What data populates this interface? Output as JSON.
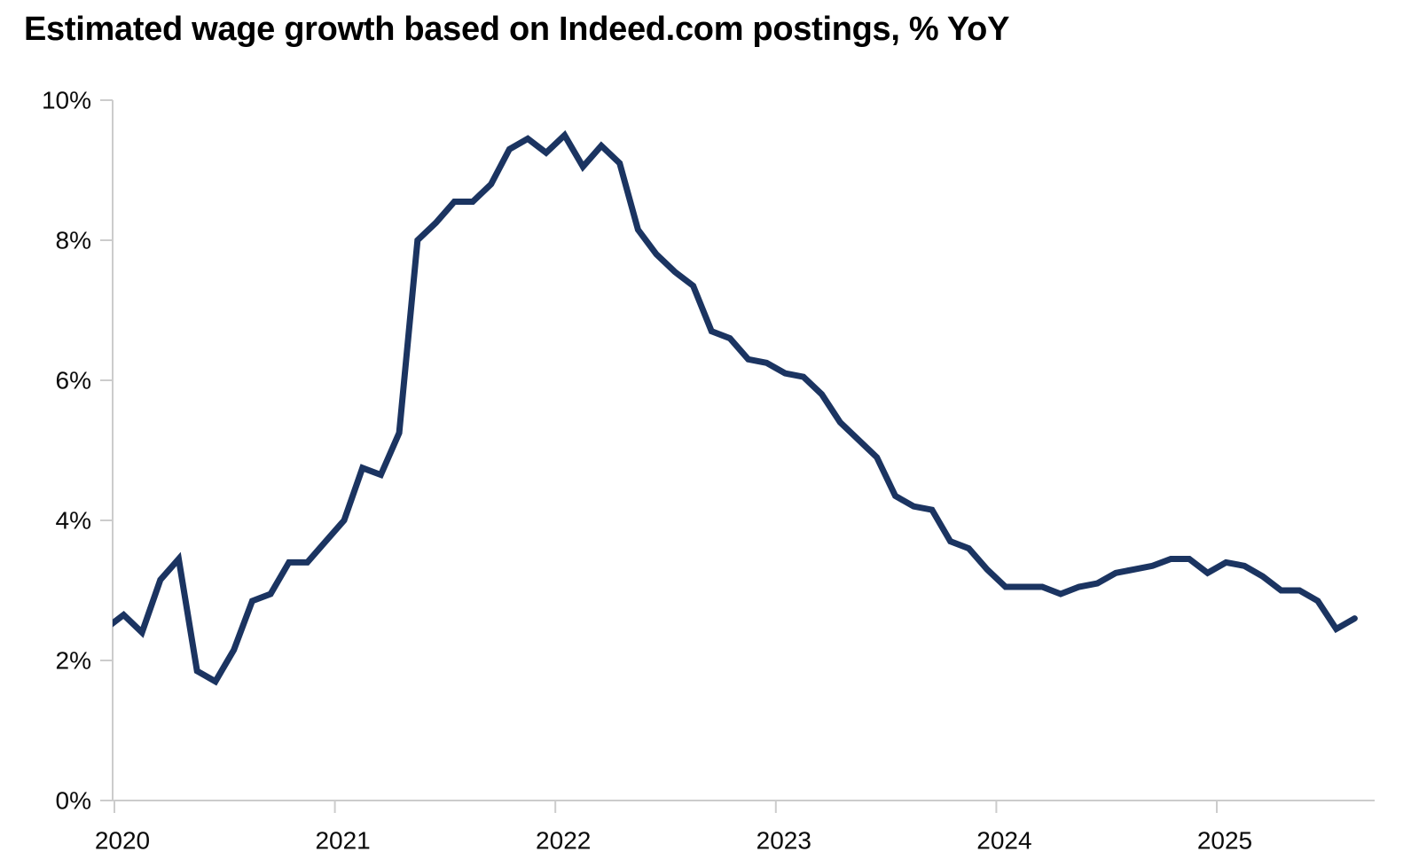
{
  "chart_data": {
    "type": "line",
    "title": "Estimated wage growth based on Indeed.com postings, % YoY",
    "frequency": "monthly",
    "x_start": "2019-12",
    "x_end": "2025-08",
    "xlabel": "",
    "ylabel": "",
    "x_tick_labels": [
      "2020",
      "2021",
      "2022",
      "2023",
      "2024",
      "2025"
    ],
    "y_tick_labels": [
      "0%",
      "2%",
      "4%",
      "6%",
      "8%",
      "10%"
    ],
    "ylim": [
      0,
      10
    ],
    "grid": false,
    "legend_position": "none",
    "axis_color": "#cccccc",
    "background_color": "#ffffff",
    "series": [
      {
        "name": "Estimated wage growth, % YoY",
        "color": "#1b3461",
        "values": [
          2.45,
          2.65,
          2.4,
          3.15,
          3.45,
          1.85,
          1.7,
          2.15,
          2.85,
          2.95,
          3.4,
          3.4,
          3.7,
          4.0,
          4.75,
          4.65,
          5.25,
          8.0,
          8.25,
          8.55,
          8.55,
          8.8,
          9.3,
          9.45,
          9.25,
          9.5,
          9.05,
          9.35,
          9.1,
          8.15,
          7.8,
          7.55,
          7.35,
          6.7,
          6.6,
          6.3,
          6.25,
          6.1,
          6.05,
          5.8,
          5.4,
          5.15,
          4.9,
          4.35,
          4.2,
          4.15,
          3.7,
          3.6,
          3.3,
          3.05,
          3.05,
          3.05,
          2.95,
          3.05,
          3.1,
          3.25,
          3.3,
          3.35,
          3.45,
          3.45,
          3.25,
          3.4,
          3.35,
          3.2,
          3.0,
          3.0,
          2.85,
          2.45,
          2.6
        ]
      }
    ]
  }
}
